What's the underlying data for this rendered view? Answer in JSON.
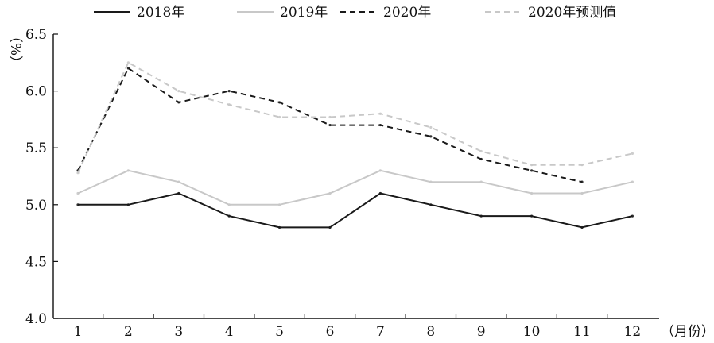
{
  "chart_data": {
    "type": "line",
    "title": "",
    "xlabel": "（月份）",
    "ylabel": "（%）",
    "categories": [
      "1",
      "2",
      "3",
      "4",
      "5",
      "6",
      "7",
      "8",
      "9",
      "10",
      "11",
      "12"
    ],
    "x": [
      1,
      2,
      3,
      4,
      5,
      6,
      7,
      8,
      9,
      10,
      11,
      12
    ],
    "ylim": [
      4.0,
      6.5
    ],
    "yticks": [
      4.0,
      4.5,
      5.0,
      5.5,
      6.0,
      6.5
    ],
    "ytick_labels": [
      "4.0",
      "4.5",
      "5.0",
      "5.5",
      "6.0",
      "6.5"
    ],
    "legend_position": "top",
    "grid": false,
    "series": [
      {
        "name": "2018年",
        "color": "#1a1a1a",
        "style": "solid",
        "values": [
          5.0,
          5.0,
          5.1,
          4.9,
          4.8,
          4.8,
          5.1,
          5.0,
          4.9,
          4.9,
          4.8,
          4.9
        ]
      },
      {
        "name": "2019年",
        "color": "#c8c8c8",
        "style": "solid",
        "values": [
          5.1,
          5.3,
          5.2,
          5.0,
          5.0,
          5.1,
          5.3,
          5.2,
          5.2,
          5.1,
          5.1,
          5.2
        ]
      },
      {
        "name": "2020年",
        "color": "#1a1a1a",
        "style": "dashed",
        "values": [
          5.3,
          6.2,
          5.9,
          6.0,
          5.9,
          5.7,
          5.7,
          5.6,
          5.4,
          5.3,
          5.2,
          null
        ]
      },
      {
        "name": "2020年预测值",
        "color": "#c8c8c8",
        "style": "dashed",
        "values": [
          5.28,
          6.25,
          6.0,
          5.88,
          5.77,
          5.77,
          5.8,
          5.68,
          5.47,
          5.35,
          5.35,
          5.45
        ]
      }
    ]
  }
}
